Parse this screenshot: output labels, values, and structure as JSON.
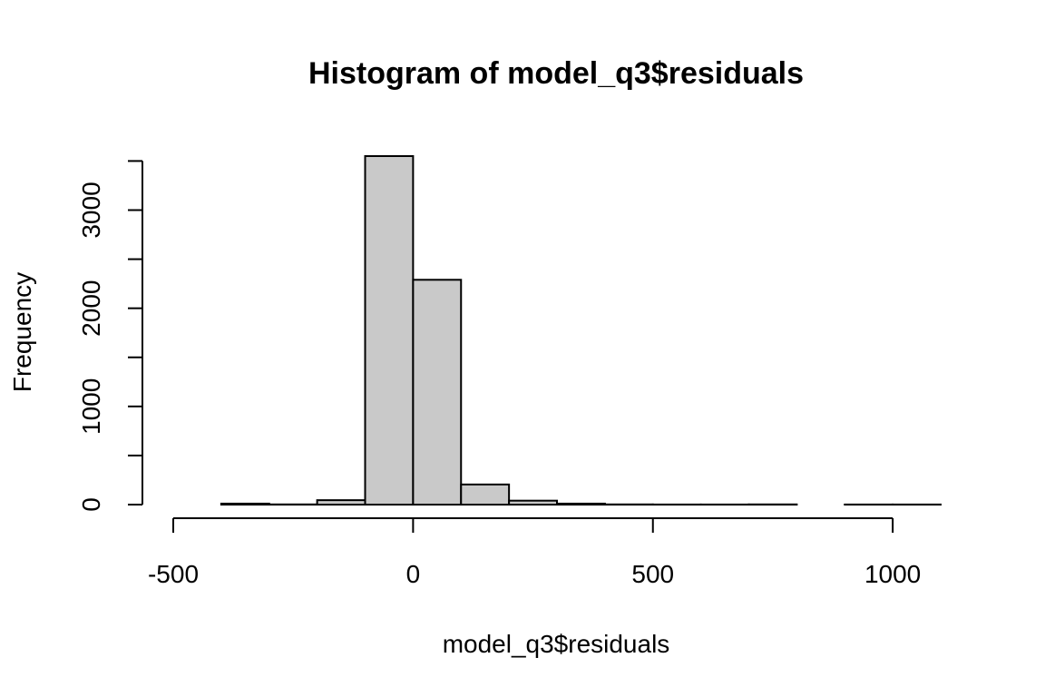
{
  "chart_data": {
    "type": "bar",
    "title": "Histogram of model_q3$residuals",
    "xlabel": "model_q3$residuals",
    "ylabel": "Frequency",
    "bar_fill": "#c9c9c9",
    "bar_stroke": "#000000",
    "bins": [
      {
        "from": -500,
        "to": -400,
        "count": 0
      },
      {
        "from": -400,
        "to": -300,
        "count": 10
      },
      {
        "from": -300,
        "to": -200,
        "count": 2
      },
      {
        "from": -200,
        "to": -100,
        "count": 45
      },
      {
        "from": -100,
        "to": 0,
        "count": 3550
      },
      {
        "from": 0,
        "to": 100,
        "count": 2290
      },
      {
        "from": 100,
        "to": 200,
        "count": 205
      },
      {
        "from": 200,
        "to": 300,
        "count": 40
      },
      {
        "from": 300,
        "to": 400,
        "count": 10
      },
      {
        "from": 400,
        "to": 500,
        "count": 2
      },
      {
        "from": 500,
        "to": 600,
        "count": 1
      },
      {
        "from": 600,
        "to": 700,
        "count": 1
      },
      {
        "from": 700,
        "to": 800,
        "count": 2
      },
      {
        "from": 800,
        "to": 900,
        "count": 0
      },
      {
        "from": 900,
        "to": 1000,
        "count": 1
      },
      {
        "from": 1000,
        "to": 1100,
        "count": 1
      }
    ],
    "xlim": [
      -500,
      1100
    ],
    "ylim": [
      0,
      3550
    ],
    "x_ticks": [
      -500,
      0,
      500,
      1000
    ],
    "x_tick_labels": [
      "-500",
      "0",
      "500",
      "1000"
    ],
    "y_ticks": [
      0,
      500,
      1000,
      1500,
      2000,
      2500,
      3000,
      3500
    ],
    "y_tick_labels": [
      "0",
      "",
      "1000",
      "",
      "2000",
      "",
      "3000",
      ""
    ],
    "grid": false,
    "legend": "none"
  }
}
